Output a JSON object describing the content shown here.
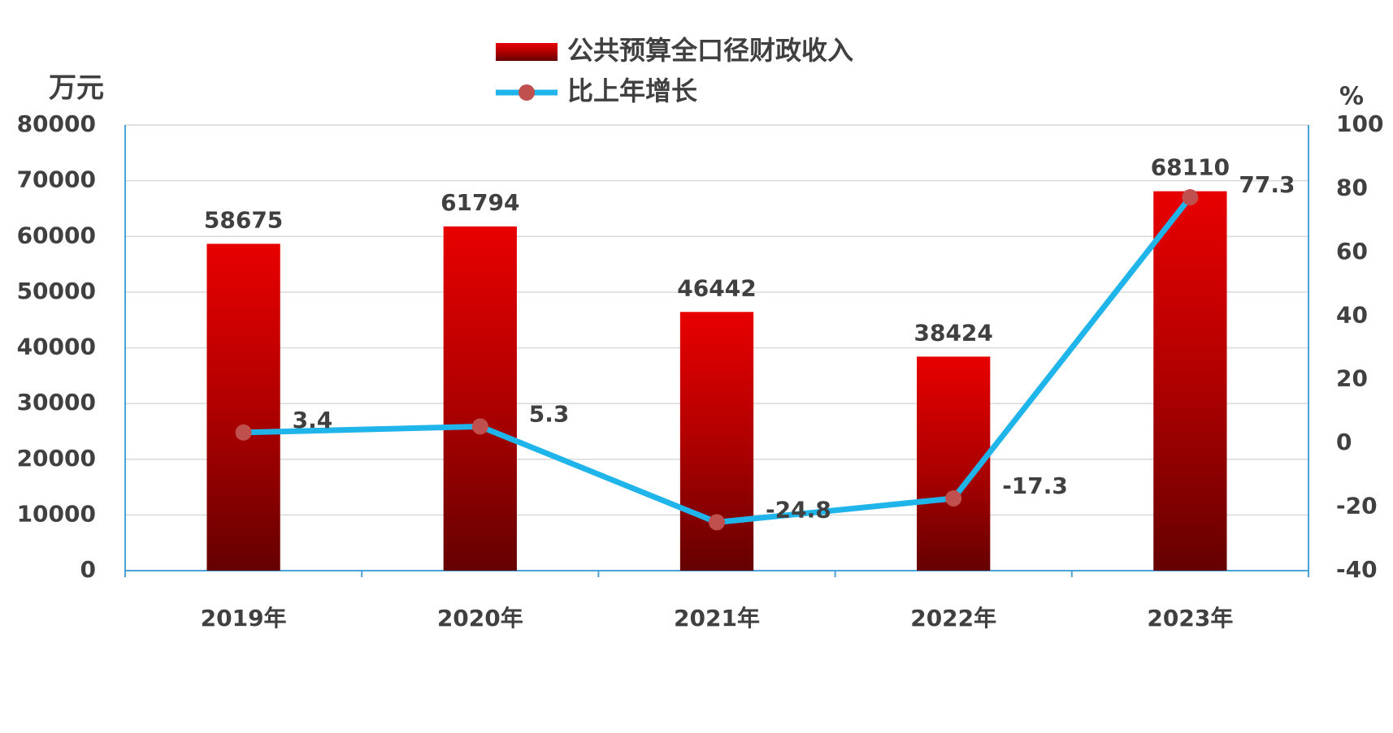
{
  "chart_data": {
    "type": "bar",
    "y_label": "万元",
    "y2_label": "%",
    "categories": [
      "2019年",
      "2020年",
      "2021年",
      "2022年",
      "2023年"
    ],
    "series": [
      {
        "name": "公共预算全口径财政收入",
        "type": "bar",
        "color": "#c00000",
        "values": [
          58675,
          61794,
          46442,
          38424,
          68110
        ]
      },
      {
        "name": "比上年增长",
        "type": "line",
        "axis": "y2",
        "color": "#1fb4ea",
        "marker_color": "#c0504d",
        "values": [
          3.4,
          5.3,
          -24.8,
          -17.3,
          77.3
        ]
      }
    ],
    "ylim": [
      0,
      80000
    ],
    "yticks": [
      0,
      10000,
      20000,
      30000,
      40000,
      50000,
      60000,
      70000,
      80000
    ],
    "y2lim": [
      -40,
      100
    ],
    "y2ticks": [
      -40,
      -20,
      0,
      20,
      40,
      60,
      80,
      100
    ],
    "grid": true,
    "legend": "top"
  }
}
